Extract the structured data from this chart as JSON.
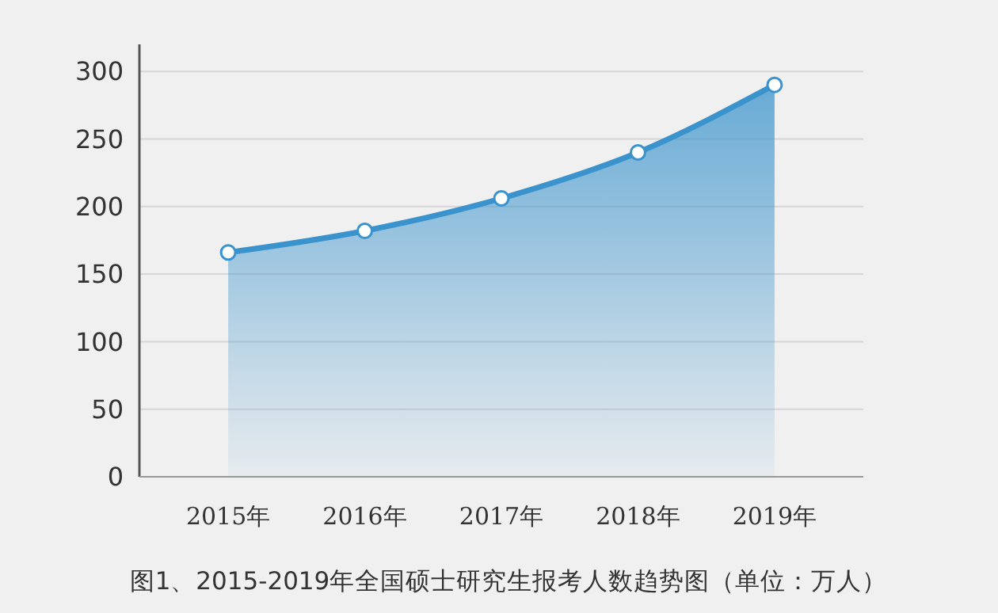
{
  "chart_data": {
    "type": "area",
    "title": "图1、2015-2019年全国硕士研究生报考人数趋势图（单位：万人）",
    "categories": [
      "2015年",
      "2016年",
      "2017年",
      "2018年",
      "2019年"
    ],
    "series": [
      {
        "color": "#3a93cc",
        "values": [
          166,
          182,
          206,
          240,
          290
        ]
      }
    ],
    "ylim": [
      0,
      320
    ],
    "yticks": [
      0,
      50,
      100,
      150,
      200,
      250,
      300
    ],
    "grid": "y",
    "marker": "circle"
  }
}
